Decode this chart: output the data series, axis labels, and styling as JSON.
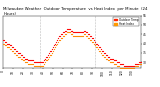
{
  "title": "Milwaukee Weather  Outdoor Temperature  vs Heat Index  per Minute  (24 Hours)",
  "title_fontsize": 2.8,
  "background_color": "#ffffff",
  "ylim": [
    27,
    55
  ],
  "yticks": [
    30,
    35,
    40,
    45,
    50,
    55
  ],
  "vlines_x": [
    0.27,
    0.67
  ],
  "legend_labels": [
    "Outdoor Temp",
    "Heat Index"
  ],
  "legend_colors": [
    "#ff2200",
    "#ff9900"
  ],
  "scatter_color": "#ff0000",
  "scatter_color2": "#ff8800",
  "scatter_size": 0.8,
  "x_data": [
    0,
    1,
    2,
    3,
    4,
    5,
    6,
    7,
    8,
    9,
    10,
    11,
    12,
    13,
    14,
    15,
    16,
    17,
    18,
    19,
    20,
    21,
    22,
    23,
    24,
    25,
    26,
    27,
    28,
    29,
    30,
    31,
    32,
    33,
    34,
    35,
    36,
    37,
    38,
    39,
    40,
    41,
    42,
    43,
    44,
    45,
    46,
    47,
    48,
    49,
    50,
    51,
    52,
    53,
    54,
    55,
    56,
    57,
    58,
    59,
    60,
    61,
    62,
    63,
    64,
    65,
    66,
    67,
    68,
    69,
    70,
    71,
    72,
    73,
    74,
    75,
    76,
    77,
    78,
    79,
    80,
    81,
    82,
    83,
    84,
    85,
    86,
    87,
    88,
    89,
    90,
    91,
    92,
    93,
    94,
    95,
    96,
    97,
    98,
    99,
    100,
    101,
    102,
    103,
    104,
    105,
    106,
    107,
    108,
    109,
    110,
    111,
    112,
    113,
    114,
    115,
    116,
    117,
    118,
    119,
    120,
    121,
    122,
    123,
    124,
    125,
    126,
    127,
    128,
    129,
    130,
    131,
    132,
    133,
    134,
    135,
    136,
    137,
    138,
    139
  ],
  "y_temp": [
    42,
    42,
    41,
    41,
    40,
    40,
    40,
    39,
    39,
    38,
    38,
    37,
    37,
    36,
    36,
    35,
    35,
    35,
    34,
    34,
    33,
    33,
    32,
    32,
    32,
    31,
    31,
    31,
    31,
    31,
    31,
    30,
    30,
    30,
    30,
    30,
    30,
    30,
    30,
    30,
    30,
    31,
    32,
    33,
    33,
    34,
    35,
    36,
    36,
    37,
    38,
    39,
    40,
    41,
    42,
    43,
    44,
    44,
    45,
    45,
    46,
    46,
    47,
    47,
    48,
    48,
    48,
    48,
    47,
    47,
    47,
    46,
    46,
    46,
    46,
    46,
    46,
    46,
    46,
    46,
    46,
    46,
    47,
    47,
    46,
    46,
    45,
    45,
    44,
    44,
    43,
    43,
    42,
    41,
    40,
    40,
    39,
    38,
    38,
    37,
    36,
    36,
    35,
    35,
    34,
    34,
    33,
    33,
    32,
    32,
    32,
    32,
    31,
    31,
    31,
    30,
    30,
    30,
    29,
    29,
    29,
    29,
    28,
    28,
    28,
    28,
    28,
    28,
    28,
    28,
    28,
    28,
    28,
    29,
    29,
    29,
    29,
    30,
    30,
    30
  ],
  "y_heat": [
    40,
    40,
    39,
    39,
    38,
    38,
    38,
    37,
    37,
    36,
    36,
    35,
    35,
    34,
    34,
    33,
    33,
    33,
    32,
    32,
    31,
    31,
    30,
    30,
    30,
    29,
    29,
    29,
    29,
    29,
    29,
    28,
    28,
    28,
    28,
    28,
    28,
    28,
    28,
    28,
    28,
    29,
    30,
    31,
    31,
    32,
    33,
    34,
    34,
    35,
    36,
    37,
    38,
    39,
    40,
    41,
    42,
    42,
    43,
    43,
    44,
    44,
    45,
    45,
    46,
    46,
    46,
    46,
    45,
    45,
    45,
    44,
    44,
    44,
    44,
    44,
    44,
    44,
    44,
    44,
    44,
    44,
    45,
    45,
    44,
    44,
    43,
    43,
    42,
    42,
    41,
    41,
    40,
    39,
    38,
    38,
    37,
    36,
    36,
    35,
    34,
    34,
    33,
    33,
    32,
    32,
    31,
    31,
    30,
    30,
    30,
    30,
    29,
    29,
    29,
    28,
    28,
    28,
    27,
    27,
    27,
    27,
    27,
    27,
    27,
    27,
    27,
    27,
    27,
    27,
    27,
    27,
    27,
    28,
    28,
    28,
    28,
    29,
    29,
    29
  ],
  "xlim": [
    0,
    139
  ],
  "xtick_step": 10,
  "tick_fontsize": 2.2,
  "legend_fontsize": 2.0
}
